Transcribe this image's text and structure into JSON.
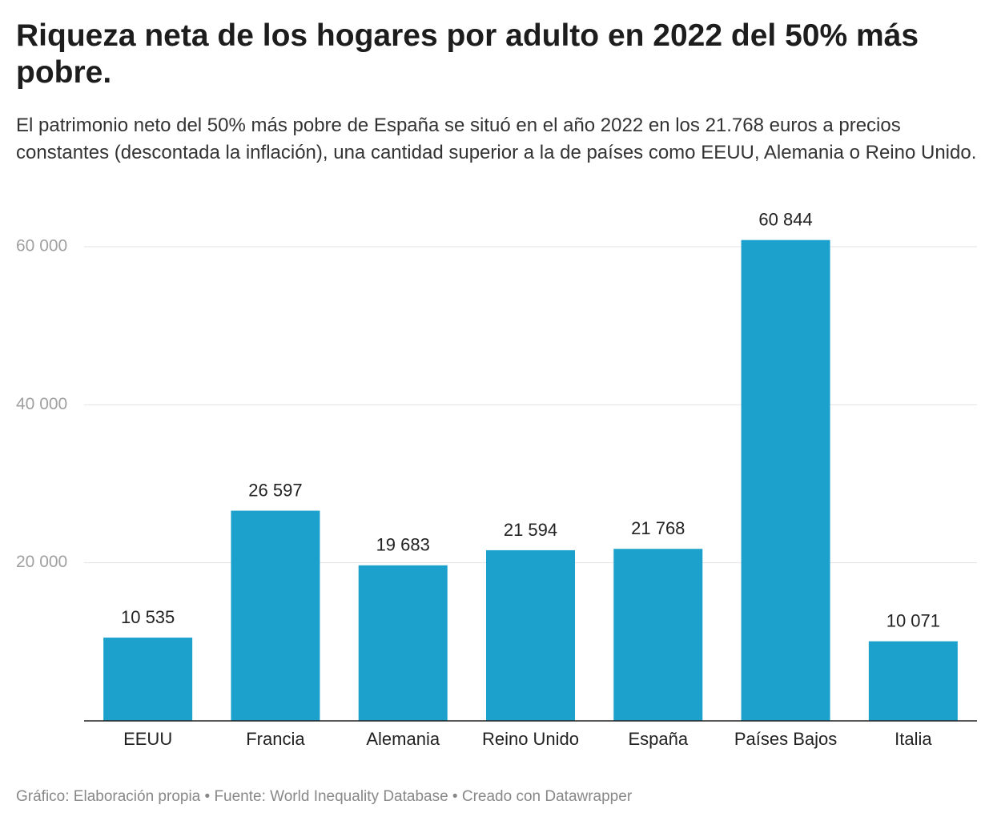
{
  "chart_data": {
    "type": "bar",
    "title": "Riqueza neta de los hogares por adulto en 2022 del 50% más pobre.",
    "subtitle": "El patrimonio neto del 50% más pobre de España se situó en el año 2022 en los 21.768 euros a precios constantes (descontada la inflación), una cantidad superior a la de países como EEUU, Alemania o Reino Unido.",
    "footer": "Gráfico: Elaboración propia • Fuente: World Inequality Database • Creado con Datawrapper",
    "categories": [
      "EEUU",
      "Francia",
      "Alemania",
      "Reino Unido",
      "España",
      "Países Bajos",
      "Italia"
    ],
    "values": [
      10535,
      26597,
      19683,
      21594,
      21768,
      60844,
      10071
    ],
    "value_labels": [
      "10 535",
      "26 597",
      "19 683",
      "21 594",
      "21 768",
      "60 844",
      "10 071"
    ],
    "color": "#1ba1cc",
    "ylim": [
      0,
      60000
    ],
    "yticks": [
      {
        "value": 20000,
        "label": "20 000"
      },
      {
        "value": 40000,
        "label": "40 000"
      },
      {
        "value": 60000,
        "label": "60 000"
      }
    ],
    "grid": true
  }
}
